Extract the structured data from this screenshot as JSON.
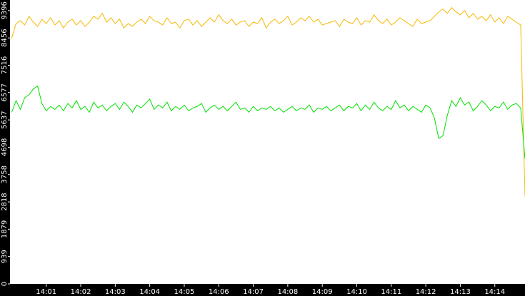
{
  "chart_data": {
    "type": "line",
    "x": [
      840,
      840.125,
      840.25,
      840.375,
      840.5,
      840.625,
      840.75,
      840.875,
      841,
      841.125,
      841.25,
      841.375,
      841.5,
      841.625,
      841.75,
      841.875,
      842,
      842.125,
      842.25,
      842.375,
      842.5,
      842.625,
      842.75,
      842.875,
      843,
      843.125,
      843.25,
      843.375,
      843.5,
      843.625,
      843.75,
      843.875,
      844,
      844.125,
      844.25,
      844.375,
      844.5,
      844.625,
      844.75,
      844.875,
      845,
      845.125,
      845.25,
      845.375,
      845.5,
      845.625,
      845.75,
      845.875,
      846,
      846.125,
      846.25,
      846.375,
      846.5,
      846.625,
      846.75,
      846.875,
      847,
      847.125,
      847.25,
      847.375,
      847.5,
      847.625,
      847.75,
      847.875,
      848,
      848.125,
      848.25,
      848.375,
      848.5,
      848.625,
      848.75,
      848.875,
      849,
      849.125,
      849.25,
      849.375,
      849.5,
      849.625,
      849.75,
      849.875,
      850,
      850.125,
      850.25,
      850.375,
      850.5,
      850.625,
      850.75,
      850.875,
      851,
      851.125,
      851.25,
      851.375,
      851.5,
      851.625,
      851.75,
      851.875,
      852,
      852.125,
      852.25,
      852.375,
      852.5,
      852.625,
      852.75,
      852.875,
      853,
      853.125,
      853.25,
      853.375,
      853.5,
      853.625,
      853.75,
      853.875,
      854,
      854.125,
      854.25,
      854.375,
      854.5,
      854.625,
      854.75,
      854.875
    ],
    "series": [
      {
        "color": "#f5b800",
        "values": [
          8450,
          8950,
          9050,
          8900,
          9200,
          9000,
          8850,
          9100,
          8950,
          9150,
          8900,
          9050,
          8800,
          9000,
          9100,
          8900,
          9050,
          8850,
          9000,
          9200,
          9100,
          9300,
          9000,
          9150,
          8950,
          9100,
          8800,
          8950,
          8850,
          9000,
          9100,
          8950,
          9200,
          9050,
          9000,
          8900,
          9150,
          8950,
          9000,
          8800,
          9050,
          9100,
          8900,
          9050,
          8850,
          9000,
          9150,
          9000,
          9250,
          9050,
          8950,
          9100,
          8900,
          9000,
          9050,
          8850,
          9000,
          8950,
          9150,
          8800,
          9000,
          9100,
          8950,
          9050,
          9200,
          8900,
          9000,
          9150,
          9050,
          9200,
          9000,
          9100,
          8900,
          8950,
          9000,
          9050,
          8850,
          9100,
          9000,
          8950,
          9150,
          8900,
          9050,
          9000,
          9250,
          9050,
          8950,
          9100,
          8900,
          9000,
          9150,
          9050,
          8950,
          8850,
          9100,
          8950,
          9000,
          9050,
          9200,
          9350,
          9450,
          9300,
          9500,
          9350,
          9250,
          9400,
          9150,
          9300,
          9100,
          9200,
          9050,
          9250,
          9000,
          9150,
          8950,
          9200,
          9100,
          9000,
          8900,
          3000
        ]
      },
      {
        "color": "#00e000",
        "values": [
          5900,
          6300,
          6000,
          6400,
          6500,
          6700,
          6800,
          6200,
          5950,
          6100,
          6000,
          6150,
          5950,
          6200,
          6050,
          6300,
          6000,
          6100,
          5900,
          6250,
          6050,
          6150,
          5950,
          6100,
          6200,
          6000,
          6250,
          6100,
          5900,
          6150,
          6050,
          6200,
          6350,
          6000,
          6150,
          6050,
          6250,
          5950,
          6100,
          6000,
          6150,
          5950,
          6050,
          6100,
          6200,
          5900,
          6050,
          6150,
          6000,
          6100,
          5950,
          6100,
          6250,
          6000,
          6050,
          5900,
          6100,
          5950,
          6050,
          6000,
          6100,
          5950,
          6050,
          5900,
          6000,
          6100,
          5950,
          6050,
          6000,
          6150,
          5900,
          6050,
          6000,
          6100,
          5950,
          6050,
          6150,
          5950,
          6100,
          6050,
          6200,
          5950,
          6150,
          6000,
          6250,
          6050,
          5950,
          6100,
          6000,
          6300,
          6050,
          6150,
          5950,
          6100,
          6000,
          5900,
          6150,
          6050,
          5700,
          5000,
          5100,
          5800,
          6300,
          6100,
          6400,
          6150,
          6250,
          5950,
          6100,
          6300,
          6150,
          5950,
          6100,
          6050,
          6250,
          6000,
          6150,
          6200,
          6050,
          4300
        ]
      }
    ],
    "xlim": [
      839.95,
      854.875
    ],
    "ylim": [
      0,
      9760
    ],
    "xticks": [
      {
        "value": 841,
        "label": "14:01"
      },
      {
        "value": 842,
        "label": "14:02"
      },
      {
        "value": 843,
        "label": "14:03"
      },
      {
        "value": 844,
        "label": "14:04"
      },
      {
        "value": 845,
        "label": "14:05"
      },
      {
        "value": 846,
        "label": "14:06"
      },
      {
        "value": 847,
        "label": "14:07"
      },
      {
        "value": 848,
        "label": "14:08"
      },
      {
        "value": 849,
        "label": "14:09"
      },
      {
        "value": 850,
        "label": "14:10"
      },
      {
        "value": 851,
        "label": "14:11"
      },
      {
        "value": 852,
        "label": "14:12"
      },
      {
        "value": 853,
        "label": "14:13"
      },
      {
        "value": 854,
        "label": "14:14"
      }
    ],
    "yticks": [
      0,
      939,
      1879,
      2818,
      3758,
      4698,
      5637,
      6577,
      7516,
      8456,
      9396
    ]
  }
}
